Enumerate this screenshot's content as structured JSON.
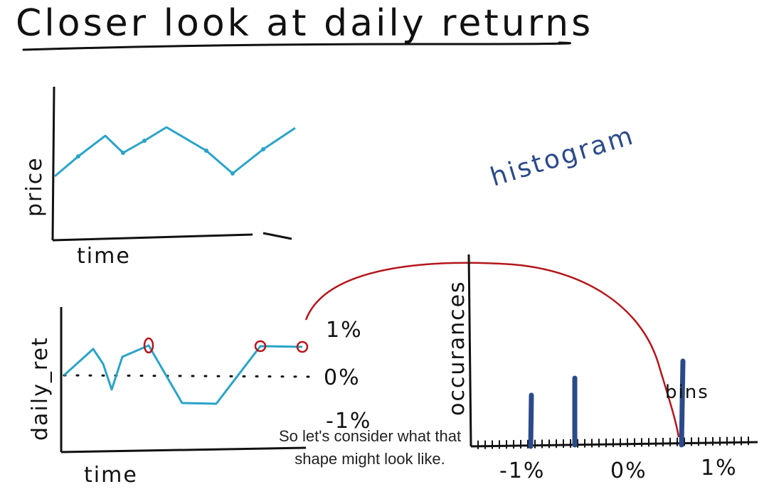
{
  "title": "Closer look at daily returns",
  "price_chart": {
    "ylabel": "price",
    "xlabel": "time"
  },
  "returns_chart": {
    "ylabel": "daily_ret",
    "xlabel": "time",
    "levels": [
      "1%",
      "0%",
      "-1%"
    ]
  },
  "histogram": {
    "label": "histogram",
    "ylabel": "occurances",
    "bins_label": "bins",
    "ticks": [
      "-1%",
      "0%",
      "1%"
    ]
  },
  "caption": {
    "line1": "So let's consider what that",
    "line2": "shape might look like."
  },
  "colors": {
    "ink": "#111111",
    "line": "#2aa3c8",
    "red": "#b3161b",
    "bar": "#2b4a8a"
  }
}
